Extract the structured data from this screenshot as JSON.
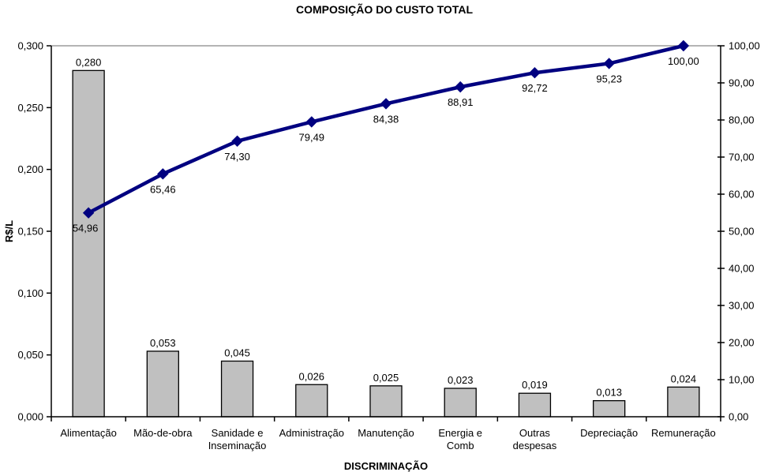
{
  "chart_data": {
    "type": "bar",
    "subtype": "pareto (bar + cumulative line)",
    "title": "COMPOSIÇÃO DO CUSTO TOTAL",
    "xlabel": "DISCRIMINAÇÃO",
    "ylabel": "R$/L",
    "categories": [
      "Alimentação",
      "Mão-de-obra",
      "Sanidade e\nInseminação",
      "Administração",
      "Manutenção",
      "Energia e\nComb",
      "Outras\ndespesas",
      "Depreciação",
      "Remuneração"
    ],
    "series": [
      {
        "name": "cost-bars",
        "type": "bar",
        "axis": "left",
        "color": "#c0c0c0",
        "border_color": "#000000",
        "values": [
          0.28,
          0.053,
          0.045,
          0.026,
          0.025,
          0.023,
          0.019,
          0.013,
          0.024
        ],
        "labels": [
          "0,280",
          "0,053",
          "0,045",
          "0,026",
          "0,025",
          "0,023",
          "0,019",
          "0,013",
          "0,024"
        ]
      },
      {
        "name": "cumulative-percent-line",
        "type": "line",
        "axis": "right",
        "color": "#000080",
        "marker": "diamond",
        "values": [
          54.96,
          65.46,
          74.3,
          79.49,
          84.38,
          88.91,
          92.72,
          95.23,
          100.0
        ],
        "labels": [
          "54,96",
          "65,46",
          "74,30",
          "79,49",
          "84,38",
          "88,91",
          "92,72",
          "95,23",
          "100,00"
        ]
      }
    ],
    "left_axis": {
      "min": 0,
      "max": 0.3,
      "step": 0.05,
      "tick_labels": [
        "0,000",
        "0,050",
        "0,100",
        "0,150",
        "0,200",
        "0,250",
        "0,300"
      ]
    },
    "right_axis": {
      "min": 0,
      "max": 100,
      "step": 10,
      "tick_labels": [
        "0,00",
        "10,00",
        "20,00",
        "30,00",
        "40,00",
        "50,00",
        "60,00",
        "70,00",
        "80,00",
        "90,00",
        "100,00"
      ]
    },
    "grid": {
      "top_border_only": true,
      "color": "#888888"
    },
    "legend": "none",
    "background": "#ffffff"
  }
}
